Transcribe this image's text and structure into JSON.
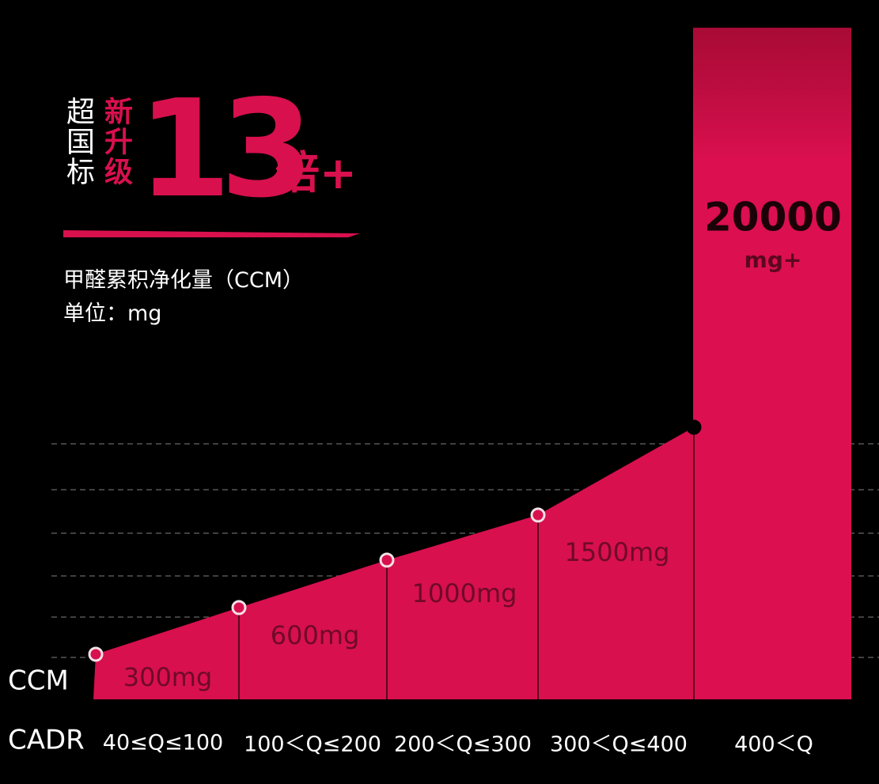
{
  "headline": {
    "prefix": "超国标",
    "badge": "新升级",
    "multiple": "13",
    "suffix": "倍+"
  },
  "caption": {
    "metric": "甲醛累积净化量（CCM）",
    "unit": "单位：mg"
  },
  "row_labels": {
    "ccm": "CCM",
    "cadr": "CADR"
  },
  "tiers": [
    {
      "ccm": "300mg",
      "cadr": "40≤Q≤100"
    },
    {
      "ccm": "600mg",
      "cadr": "100＜Q≤200"
    },
    {
      "ccm": "1000mg",
      "cadr": "200＜Q≤300"
    },
    {
      "ccm": "1500mg",
      "cadr": "300＜Q≤400"
    },
    {
      "ccm": "20000",
      "ccm_unit": "mg+",
      "cadr": "400＜Q"
    }
  ]
}
